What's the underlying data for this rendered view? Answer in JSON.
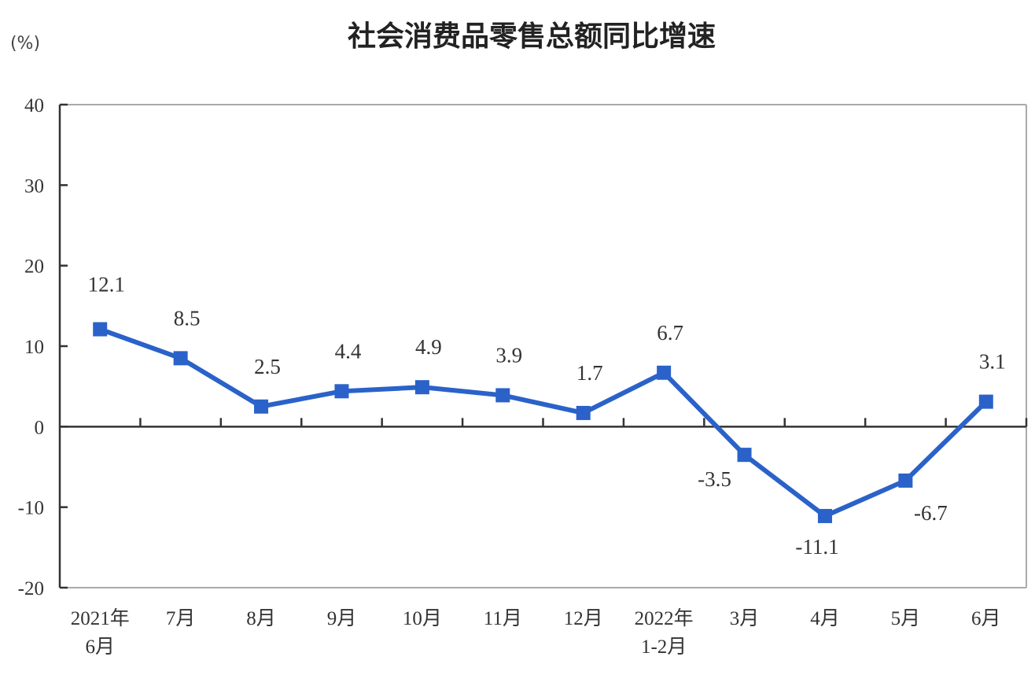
{
  "chart_data": {
    "type": "line",
    "title": "社会消费品零售总额同比增速",
    "ylabel": "(%)",
    "xlabel": "",
    "ylim": [
      -20,
      40
    ],
    "yticks": [
      40,
      30,
      20,
      10,
      0,
      -10,
      -20
    ],
    "grid": false,
    "legend": null,
    "categories": [
      [
        "2021年",
        "6月"
      ],
      [
        "7月"
      ],
      [
        "8月"
      ],
      [
        "9月"
      ],
      [
        "10月"
      ],
      [
        "11月"
      ],
      [
        "12月"
      ],
      [
        "2022年",
        "1-2月"
      ],
      [
        "3月"
      ],
      [
        "4月"
      ],
      [
        "5月"
      ],
      [
        "6月"
      ]
    ],
    "series": [
      {
        "name": "社会消费品零售总额同比增速",
        "color": "#2a62c9",
        "marker": "square",
        "values": [
          12.1,
          8.5,
          2.5,
          4.4,
          4.9,
          3.9,
          1.7,
          6.7,
          -3.5,
          -11.1,
          -6.7,
          3.1
        ],
        "labels": [
          "12.1",
          "8.5",
          "2.5",
          "4.4",
          "4.9",
          "3.9",
          "1.7",
          "6.7",
          "-3.5",
          "-11.1",
          "-6.7",
          "3.1"
        ]
      }
    ]
  },
  "colors": {
    "line": "#2a62c9",
    "axis": "#333333",
    "frame": "#aaaaaa",
    "text": "#333333"
  }
}
